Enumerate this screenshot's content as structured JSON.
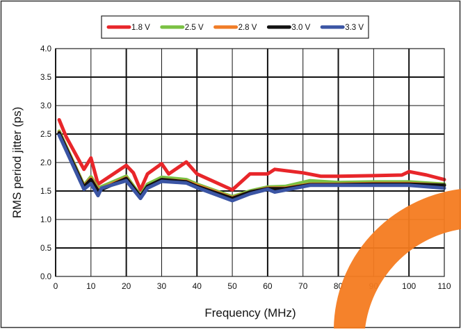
{
  "chart_data": {
    "type": "line",
    "xlabel": "Frequency (MHz)",
    "ylabel": "RMS period jitter (ps)",
    "xlim": [
      0,
      110
    ],
    "ylim": [
      0,
      4.0
    ],
    "x_ticks": [
      "0",
      "10",
      "20",
      "30",
      "40",
      "50",
      "60",
      "70",
      "80",
      "90",
      "100",
      "110"
    ],
    "y_ticks": [
      "0.0",
      "0.5",
      "1.0",
      "1.5",
      "2.0",
      "2.5",
      "3.0",
      "3.5",
      "4.0"
    ],
    "grid": true,
    "legend_position": "top",
    "series": [
      {
        "name": "1.8 V",
        "color": "#e8262a",
        "points": [
          [
            1,
            2.75
          ],
          [
            3,
            2.45
          ],
          [
            8,
            1.88
          ],
          [
            10,
            2.08
          ],
          [
            12,
            1.62
          ],
          [
            20,
            1.95
          ],
          [
            22,
            1.82
          ],
          [
            24,
            1.52
          ],
          [
            26,
            1.8
          ],
          [
            30,
            1.98
          ],
          [
            32,
            1.8
          ],
          [
            37,
            2.01
          ],
          [
            40,
            1.8
          ],
          [
            50,
            1.52
          ],
          [
            55,
            1.8
          ],
          [
            60,
            1.8
          ],
          [
            62,
            1.88
          ],
          [
            70,
            1.82
          ],
          [
            75,
            1.76
          ],
          [
            80,
            1.76
          ],
          [
            90,
            1.77
          ],
          [
            98,
            1.78
          ],
          [
            100,
            1.84
          ],
          [
            105,
            1.78
          ],
          [
            110,
            1.7
          ]
        ]
      },
      {
        "name": "2.5 V",
        "color": "#7ac143",
        "points": [
          [
            1,
            2.55
          ],
          [
            8,
            1.6
          ],
          [
            10,
            1.75
          ],
          [
            12,
            1.55
          ],
          [
            20,
            1.76
          ],
          [
            24,
            1.42
          ],
          [
            26,
            1.62
          ],
          [
            30,
            1.74
          ],
          [
            37,
            1.7
          ],
          [
            40,
            1.62
          ],
          [
            50,
            1.4
          ],
          [
            55,
            1.5
          ],
          [
            60,
            1.57
          ],
          [
            65,
            1.58
          ],
          [
            72,
            1.68
          ],
          [
            80,
            1.65
          ],
          [
            90,
            1.66
          ],
          [
            100,
            1.66
          ],
          [
            110,
            1.62
          ]
        ]
      },
      {
        "name": "2.8 V",
        "color": "#f07c27",
        "points": [
          [
            1,
            2.53
          ],
          [
            8,
            1.58
          ],
          [
            10,
            1.72
          ],
          [
            12,
            1.52
          ],
          [
            20,
            1.73
          ],
          [
            24,
            1.4
          ],
          [
            26,
            1.58
          ],
          [
            30,
            1.7
          ],
          [
            37,
            1.67
          ],
          [
            40,
            1.6
          ],
          [
            50,
            1.38
          ],
          [
            55,
            1.48
          ],
          [
            60,
            1.55
          ],
          [
            65,
            1.55
          ],
          [
            72,
            1.62
          ],
          [
            80,
            1.62
          ],
          [
            90,
            1.63
          ],
          [
            100,
            1.63
          ],
          [
            110,
            1.6
          ]
        ]
      },
      {
        "name": "3.0 V",
        "color": "#111111",
        "points": [
          [
            1,
            2.52
          ],
          [
            8,
            1.57
          ],
          [
            10,
            1.7
          ],
          [
            12,
            1.5
          ],
          [
            20,
            1.72
          ],
          [
            24,
            1.4
          ],
          [
            26,
            1.58
          ],
          [
            30,
            1.7
          ],
          [
            37,
            1.66
          ],
          [
            40,
            1.58
          ],
          [
            50,
            1.37
          ],
          [
            55,
            1.48
          ],
          [
            60,
            1.54
          ],
          [
            65,
            1.54
          ],
          [
            72,
            1.61
          ],
          [
            80,
            1.61
          ],
          [
            90,
            1.62
          ],
          [
            100,
            1.62
          ],
          [
            110,
            1.6
          ]
        ]
      },
      {
        "name": "3.3 V",
        "color": "#3b55a4",
        "points": [
          [
            1,
            2.48
          ],
          [
            8,
            1.53
          ],
          [
            10,
            1.63
          ],
          [
            12,
            1.42
          ],
          [
            13,
            1.55
          ],
          [
            20,
            1.68
          ],
          [
            24,
            1.37
          ],
          [
            26,
            1.55
          ],
          [
            30,
            1.67
          ],
          [
            37,
            1.64
          ],
          [
            40,
            1.56
          ],
          [
            50,
            1.33
          ],
          [
            55,
            1.45
          ],
          [
            60,
            1.53
          ],
          [
            62,
            1.48
          ],
          [
            72,
            1.6
          ],
          [
            80,
            1.6
          ],
          [
            90,
            1.6
          ],
          [
            100,
            1.6
          ],
          [
            110,
            1.55
          ]
        ]
      }
    ]
  }
}
